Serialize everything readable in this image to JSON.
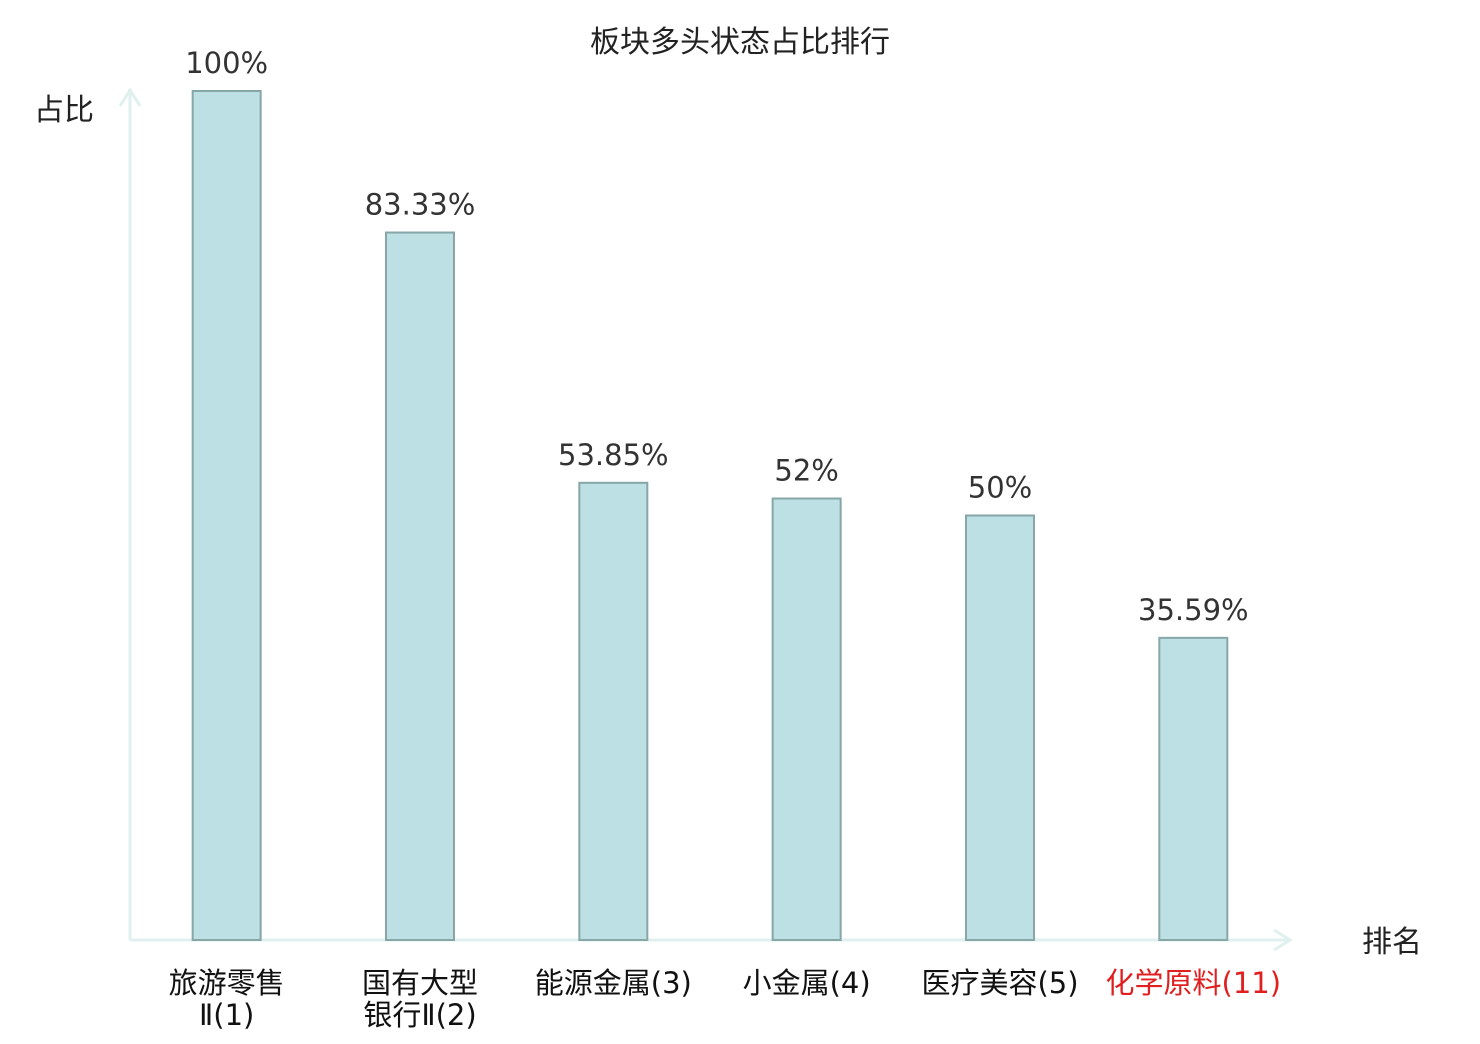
{
  "chart_data": {
    "type": "bar",
    "title": "板块多头状态占比排行",
    "ylabel": "占比",
    "xlabel": "排名",
    "ylim": [
      0,
      100
    ],
    "grid": false,
    "categories": [
      {
        "lines": [
          "旅游零售",
          "Ⅱ(1)"
        ],
        "highlight": false
      },
      {
        "lines": [
          "国有大型",
          "银行Ⅱ(2)"
        ],
        "highlight": false
      },
      {
        "lines": [
          "能源金属(3)"
        ],
        "highlight": false
      },
      {
        "lines": [
          "小金属(4)"
        ],
        "highlight": false
      },
      {
        "lines": [
          "医疗美容(5)"
        ],
        "highlight": false
      },
      {
        "lines": [
          "化学原料(11)"
        ],
        "highlight": true
      }
    ],
    "values": [
      100,
      83.33,
      53.85,
      52,
      50,
      35.59
    ],
    "value_labels": [
      "100%",
      "83.33%",
      "53.85%",
      "52%",
      "50%",
      "35.59%"
    ]
  },
  "colors": {
    "bar_fill": "#bce0e3",
    "bar_stroke": "#86a6a8",
    "axis": "#dff0ee",
    "text": "#333333",
    "category_text": "#111111",
    "highlight": "#e02020"
  }
}
